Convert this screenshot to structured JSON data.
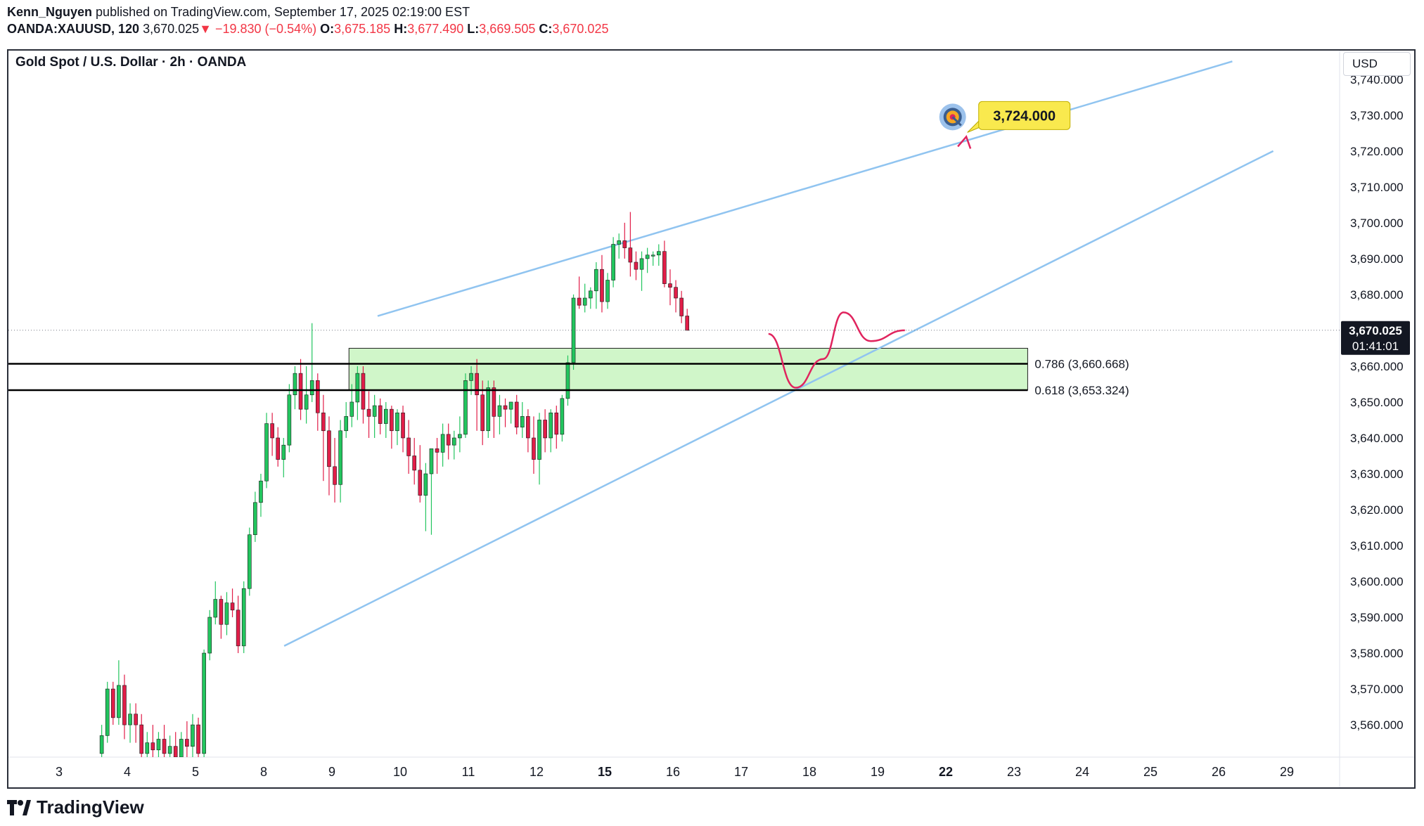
{
  "header": {
    "author": "Kenn_Nguyen",
    "published": "published on TradingView.com, September 17, 2025 02:19:00 EST",
    "symbol": "OANDA:XAUUSD, 120",
    "last": "3,670.025",
    "change": "−19.830 (−0.54%)",
    "o_label": "O:",
    "o_value": "3,675.185",
    "h_label": "H:",
    "h_value": "3,677.490",
    "l_label": "L:",
    "l_value": "3,669.505",
    "c_label": "C:",
    "c_value": "3,670.025"
  },
  "chart_title": "Gold Spot / U.S. Dollar · 2h · OANDA",
  "currency": "USD",
  "footer": {
    "brand": "TradingView"
  },
  "colors": {
    "up": "#22c55e",
    "down": "#e11d48",
    "trendline": "#90c4f0",
    "zone": "#c8f5c0",
    "arrow": "#e0245e",
    "target_bg": "#f9e94e"
  },
  "chart_data": {
    "type": "candlestick",
    "title": "Gold Spot / U.S. Dollar · 2h · OANDA",
    "ylim": [
      3551,
      3748
    ],
    "y_ticks": [
      3560,
      3570,
      3580,
      3590,
      3600,
      3610,
      3620,
      3630,
      3640,
      3650,
      3660,
      3670,
      3680,
      3690,
      3700,
      3710,
      3720,
      3730,
      3740
    ],
    "y_tick_labels": [
      "3,560.000",
      "3,570.000",
      "3,580.000",
      "3,590.000",
      "3,600.000",
      "3,610.000",
      "3,620.000",
      "3,630.000",
      "3,640.000",
      "3,650.000",
      "3,660.000",
      "3,670.000",
      "3,680.000",
      "3,690.000",
      "3,700.000",
      "3,710.000",
      "3,720.000",
      "3,730.000",
      "3,740.000"
    ],
    "x_ticks": [
      "3",
      "4",
      "5",
      "8",
      "9",
      "10",
      "11",
      "12",
      "15",
      "16",
      "17",
      "18",
      "19",
      "22",
      "23",
      "24",
      "25",
      "26",
      "29"
    ],
    "current_price": {
      "value": 3670.025,
      "label": "3,670.025",
      "countdown": "01:41:01"
    },
    "candles": [
      [
        3552,
        3560,
        3551,
        3557
      ],
      [
        3557,
        3572,
        3555,
        3570
      ],
      [
        3570,
        3572,
        3560,
        3562
      ],
      [
        3562,
        3578,
        3560,
        3571
      ],
      [
        3571,
        3574,
        3556,
        3560
      ],
      [
        3560,
        3566,
        3555,
        3563
      ],
      [
        3563,
        3566,
        3555,
        3560
      ],
      [
        3560,
        3563,
        3548,
        3552
      ],
      [
        3552,
        3558,
        3548,
        3555
      ],
      [
        3555,
        3560,
        3550,
        3553
      ],
      [
        3553,
        3558,
        3549,
        3556
      ],
      [
        3556,
        3560,
        3550,
        3552
      ],
      [
        3552,
        3557,
        3548,
        3554
      ],
      [
        3554,
        3558,
        3549,
        3551
      ],
      [
        3551,
        3558,
        3548,
        3556
      ],
      [
        3556,
        3561,
        3550,
        3554
      ],
      [
        3554,
        3563,
        3551,
        3560
      ],
      [
        3560,
        3562,
        3550,
        3552
      ],
      [
        3552,
        3581,
        3550,
        3580
      ],
      [
        3580,
        3592,
        3578,
        3590
      ],
      [
        3590,
        3600,
        3588,
        3595
      ],
      [
        3595,
        3596,
        3584,
        3588
      ],
      [
        3588,
        3597,
        3585,
        3594
      ],
      [
        3594,
        3598,
        3590,
        3592
      ],
      [
        3592,
        3596,
        3580,
        3582
      ],
      [
        3582,
        3600,
        3580,
        3598
      ],
      [
        3598,
        3615,
        3596,
        3613
      ],
      [
        3613,
        3625,
        3611,
        3622
      ],
      [
        3622,
        3630,
        3618,
        3628
      ],
      [
        3628,
        3647,
        3626,
        3644
      ],
      [
        3644,
        3647,
        3635,
        3640
      ],
      [
        3640,
        3643,
        3632,
        3634
      ],
      [
        3634,
        3640,
        3629,
        3638
      ],
      [
        3638,
        3655,
        3636,
        3652
      ],
      [
        3652,
        3660,
        3648,
        3658
      ],
      [
        3658,
        3662,
        3645,
        3648
      ],
      [
        3648,
        3660,
        3644,
        3652
      ],
      [
        3652,
        3672,
        3650,
        3656
      ],
      [
        3656,
        3658,
        3642,
        3647
      ],
      [
        3647,
        3652,
        3628,
        3642
      ],
      [
        3642,
        3646,
        3624,
        3632
      ],
      [
        3632,
        3640,
        3622,
        3627
      ],
      [
        3627,
        3645,
        3622,
        3642
      ],
      [
        3642,
        3650,
        3640,
        3646
      ],
      [
        3646,
        3655,
        3643,
        3650
      ],
      [
        3650,
        3660,
        3645,
        3658
      ],
      [
        3658,
        3660,
        3644,
        3648
      ],
      [
        3648,
        3653,
        3640,
        3646
      ],
      [
        3646,
        3652,
        3640,
        3649
      ],
      [
        3649,
        3651,
        3641,
        3644
      ],
      [
        3644,
        3650,
        3640,
        3648
      ],
      [
        3648,
        3649,
        3637,
        3642
      ],
      [
        3642,
        3648,
        3638,
        3647
      ],
      [
        3647,
        3649,
        3636,
        3640
      ],
      [
        3640,
        3645,
        3630,
        3635
      ],
      [
        3635,
        3640,
        3627,
        3631
      ],
      [
        3631,
        3638,
        3622,
        3624
      ],
      [
        3624,
        3633,
        3614,
        3630
      ],
      [
        3630,
        3637,
        3613,
        3637
      ],
      [
        3637,
        3640,
        3630,
        3636
      ],
      [
        3636,
        3644,
        3632,
        3641
      ],
      [
        3641,
        3644,
        3634,
        3638
      ],
      [
        3638,
        3642,
        3634,
        3640
      ],
      [
        3640,
        3646,
        3636,
        3641
      ],
      [
        3641,
        3658,
        3640,
        3656
      ],
      [
        3656,
        3660,
        3652,
        3658
      ],
      [
        3658,
        3662,
        3642,
        3652
      ],
      [
        3652,
        3656,
        3638,
        3642
      ],
      [
        3642,
        3656,
        3640,
        3654
      ],
      [
        3654,
        3656,
        3640,
        3646
      ],
      [
        3646,
        3652,
        3641,
        3649
      ],
      [
        3649,
        3651,
        3643,
        3648
      ],
      [
        3648,
        3650,
        3644,
        3650
      ],
      [
        3650,
        3652,
        3641,
        3643
      ],
      [
        3643,
        3650,
        3640,
        3646
      ],
      [
        3646,
        3648,
        3636,
        3640
      ],
      [
        3640,
        3646,
        3630,
        3634
      ],
      [
        3634,
        3647,
        3627,
        3645
      ],
      [
        3645,
        3648,
        3636,
        3640
      ],
      [
        3640,
        3648,
        3636,
        3647
      ],
      [
        3647,
        3649,
        3637,
        3641
      ],
      [
        3641,
        3652,
        3639,
        3651
      ],
      [
        3651,
        3663,
        3649,
        3661
      ],
      [
        3661,
        3680,
        3659,
        3679
      ],
      [
        3679,
        3685,
        3676,
        3677
      ],
      [
        3677,
        3683,
        3675,
        3679
      ],
      [
        3679,
        3682,
        3676,
        3681
      ],
      [
        3681,
        3689,
        3676,
        3687
      ],
      [
        3687,
        3691,
        3675,
        3678
      ],
      [
        3678,
        3686,
        3676,
        3684
      ],
      [
        3684,
        3696,
        3682,
        3694
      ],
      [
        3694,
        3697,
        3690,
        3695
      ],
      [
        3695,
        3700,
        3690,
        3693
      ],
      [
        3693,
        3703,
        3685,
        3689
      ],
      [
        3689,
        3692,
        3684,
        3687
      ],
      [
        3687,
        3692,
        3681,
        3690
      ],
      [
        3690,
        3693,
        3686,
        3691
      ],
      [
        3691,
        3692,
        3688,
        3691
      ],
      [
        3691,
        3694,
        3688,
        3692
      ],
      [
        3692,
        3695,
        3682,
        3683
      ],
      [
        3683,
        3687,
        3677,
        3682
      ],
      [
        3682,
        3684,
        3675,
        3679
      ],
      [
        3679,
        3681,
        3672,
        3674
      ],
      [
        3674,
        3676,
        3670,
        3670
      ]
    ],
    "resistance_line": {
      "from": [
        "9.67",
        3674
      ],
      "to": [
        "26.2",
        3745
      ]
    },
    "support_line": {
      "from": [
        "8.3",
        3582
      ],
      "to": [
        "26.8",
        3720
      ]
    },
    "demand_zone": {
      "from": "9.25",
      "to": "23.2",
      "low": 3653.324,
      "high": 3665
    },
    "fib_levels": [
      {
        "label": "0.786 (3,660.668)",
        "value": 3660.668
      },
      {
        "label": "0.618 (3,653.324)",
        "value": 3653.324
      }
    ],
    "projection_path": [
      [
        "17.4",
        3669
      ],
      [
        "17.8",
        3654
      ],
      [
        "18.2",
        3662
      ],
      [
        "18.5",
        3675
      ],
      [
        "18.9",
        3667
      ],
      [
        "19.4",
        3670
      ],
      [
        "20.3",
        3690
      ],
      [
        "22.3",
        3724
      ]
    ],
    "target": {
      "label": "3,724.000",
      "value": 3724.0
    }
  }
}
